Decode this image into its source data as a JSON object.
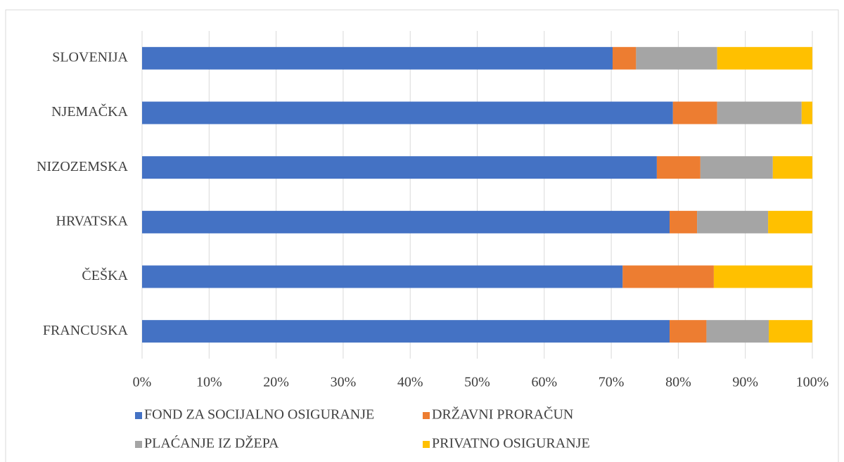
{
  "chart_data": {
    "type": "stacked_barh",
    "categories": [
      "SLOVENIJA",
      "NJEMAČKA",
      "NIZOZEMSKA",
      "HRVATSKA",
      "ČEŠKA",
      "FRANCUSKA"
    ],
    "series": [
      {
        "name": "FOND ZA SOCIJALNO OSIGURANJE",
        "color": "#4472c4",
        "values": [
          70.2,
          79.2,
          76.8,
          78.7,
          71.7,
          78.7
        ]
      },
      {
        "name": "DRŽAVNI PRORAČUN",
        "color": "#ed7d31",
        "values": [
          3.5,
          6.6,
          6.5,
          4.1,
          13.6,
          5.5
        ]
      },
      {
        "name": "PLAĆANJE IZ DŽEPA",
        "color": "#a5a5a5",
        "values": [
          12.1,
          12.6,
          10.8,
          10.6,
          0,
          9.3
        ]
      },
      {
        "name": "PRIVATNO OSIGURANJE",
        "color": "#ffc000",
        "values": [
          14.2,
          1.6,
          5.9,
          6.6,
          14.7,
          6.5
        ]
      }
    ],
    "xlim": [
      0,
      100
    ],
    "xticks": [
      {
        "value": 0,
        "label": "0%"
      },
      {
        "value": 10,
        "label": "10%"
      },
      {
        "value": 20,
        "label": "20%"
      },
      {
        "value": 30,
        "label": "30%"
      },
      {
        "value": 40,
        "label": "40%"
      },
      {
        "value": 50,
        "label": "50%"
      },
      {
        "value": 60,
        "label": "60%"
      },
      {
        "value": 70,
        "label": "70%"
      },
      {
        "value": 80,
        "label": "80%"
      },
      {
        "value": 90,
        "label": "90%"
      },
      {
        "value": 100,
        "label": "100%"
      }
    ],
    "grid": true,
    "legend": "bottom"
  }
}
